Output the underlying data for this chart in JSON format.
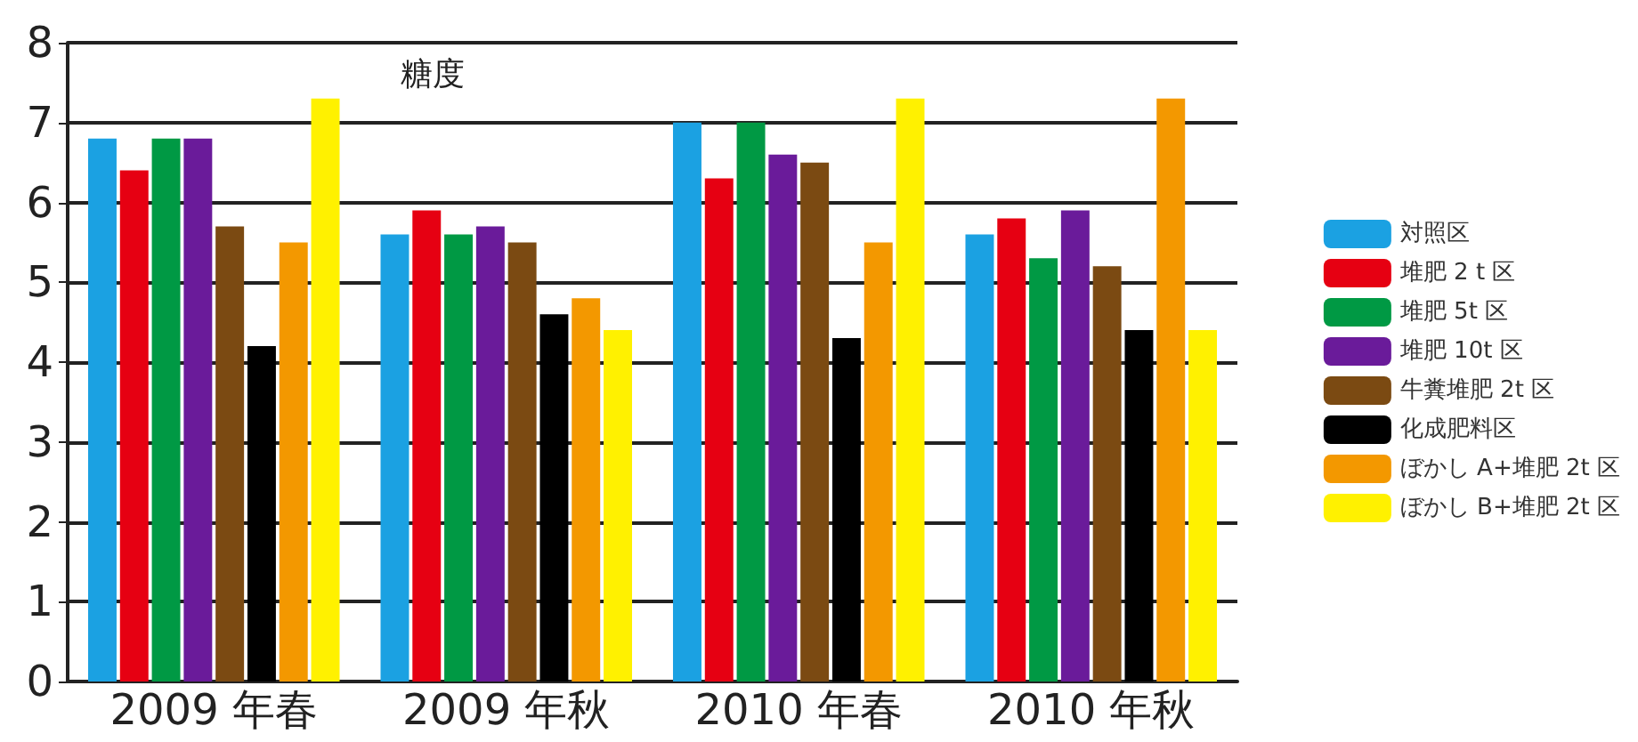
{
  "chart_data": {
    "type": "bar",
    "title": "糖度",
    "categories": [
      "2009 年春",
      "2009 年秋",
      "2010 年春",
      "2010 年秋"
    ],
    "series": [
      {
        "name": "対照区",
        "color": "#1ba1e2",
        "values": [
          6.8,
          5.6,
          7.0,
          5.6
        ]
      },
      {
        "name": "堆肥 2 t 区",
        "color": "#e60012",
        "values": [
          6.4,
          5.9,
          6.3,
          5.8
        ]
      },
      {
        "name": "堆肥 5t 区",
        "color": "#009944",
        "values": [
          6.8,
          5.6,
          7.0,
          5.3
        ]
      },
      {
        "name": "堆肥 10t 区",
        "color": "#6a1b9a",
        "values": [
          6.8,
          5.7,
          6.6,
          5.9
        ]
      },
      {
        "name": "牛糞堆肥 2t 区",
        "color": "#7b4a12",
        "values": [
          5.7,
          5.5,
          6.5,
          5.2
        ]
      },
      {
        "name": "化成肥料区",
        "color": "#000000",
        "values": [
          4.2,
          4.6,
          4.3,
          4.4
        ]
      },
      {
        "name": "ぼかし A+堆肥 2t 区",
        "color": "#f39800",
        "values": [
          5.5,
          4.8,
          5.5,
          7.3
        ]
      },
      {
        "name": "ぼかし B+堆肥 2t 区",
        "color": "#fff100",
        "values": [
          7.3,
          4.4,
          7.3,
          4.4
        ]
      }
    ],
    "ylim": [
      0,
      8
    ],
    "yticks": [
      0,
      1,
      2,
      3,
      4,
      5,
      6,
      7,
      8
    ],
    "grid": "y",
    "legend": "right"
  }
}
